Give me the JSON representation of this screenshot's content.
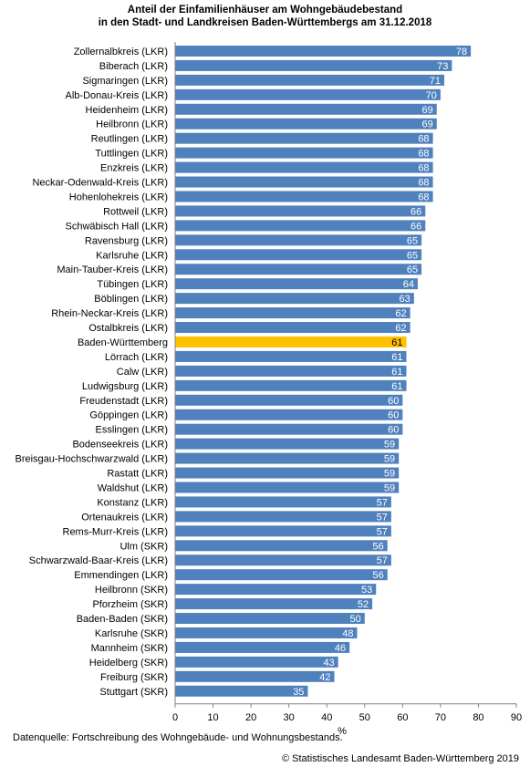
{
  "title_line1": "Anteil der Einfamilienhäuser am Wohngebäudebestand",
  "title_line2": "in den Stadt- und Landkreisen Baden-Württembergs am 31.12.2018",
  "source": "Datenquelle: Fortschreibung des  Wohngebäude- und Wohnungsbestands.",
  "copyright": "© Statistisches Landesamt Baden-Württemberg 2019",
  "colors": {
    "bar": "#4f81bd",
    "highlight": "#ffc000",
    "axis": "#808080"
  },
  "chart_data": {
    "type": "bar",
    "orientation": "horizontal",
    "xlabel": "%",
    "xlim": [
      0,
      90
    ],
    "xticks": [
      0,
      10,
      20,
      30,
      40,
      50,
      60,
      70,
      80,
      90
    ],
    "highlight": "Baden-Württemberg",
    "grid": false,
    "categories": [
      "Zollernalbkreis (LKR)",
      "Biberach (LKR)",
      "Sigmaringen (LKR)",
      "Alb-Donau-Kreis (LKR)",
      "Heidenheim (LKR)",
      "Heilbronn (LKR)",
      "Reutlingen (LKR)",
      "Tuttlingen (LKR)",
      "Enzkreis (LKR)",
      "Neckar-Odenwald-Kreis (LKR)",
      "Hohenlohekreis (LKR)",
      "Rottweil (LKR)",
      "Schwäbisch Hall (LKR)",
      "Ravensburg (LKR)",
      "Karlsruhe (LKR)",
      "Main-Tauber-Kreis (LKR)",
      "Tübingen (LKR)",
      "Böblingen (LKR)",
      "Rhein-Neckar-Kreis (LKR)",
      "Ostalbkreis (LKR)",
      "Baden-Württemberg",
      "Lörrach (LKR)",
      "Calw (LKR)",
      "Ludwigsburg (LKR)",
      "Freudenstadt (LKR)",
      "Göppingen (LKR)",
      "Esslingen (LKR)",
      "Bodenseekreis (LKR)",
      "Breisgau-Hochschwarzwald (LKR)",
      "Rastatt (LKR)",
      "Waldshut (LKR)",
      "Konstanz (LKR)",
      "Ortenaukreis (LKR)",
      "Rems-Murr-Kreis (LKR)",
      "Ulm (SKR)",
      "Schwarzwald-Baar-Kreis (LKR)",
      "Emmendingen (LKR)",
      "Heilbronn (SKR)",
      "Pforzheim (SKR)",
      "Baden-Baden (SKR)",
      "Karlsruhe (SKR)",
      "Mannheim (SKR)",
      "Heidelberg (SKR)",
      "Freiburg (SKR)",
      "Stuttgart (SKR)"
    ],
    "values": [
      78,
      73,
      71,
      70,
      69,
      69,
      68,
      68,
      68,
      68,
      68,
      66,
      66,
      65,
      65,
      65,
      64,
      63,
      62,
      62,
      61,
      61,
      61,
      61,
      60,
      60,
      60,
      59,
      59,
      59,
      59,
      57,
      57,
      57,
      56,
      57,
      56,
      53,
      52,
      50,
      48,
      46,
      43,
      42,
      35
    ]
  }
}
